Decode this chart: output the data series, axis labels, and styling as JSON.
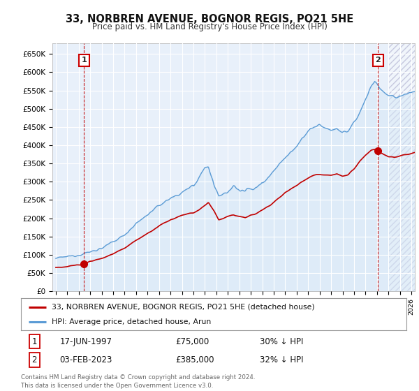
{
  "title": "33, NORBREN AVENUE, BOGNOR REGIS, PO21 5HE",
  "subtitle": "Price paid vs. HM Land Registry's House Price Index (HPI)",
  "ylim": [
    0,
    680000
  ],
  "yticks": [
    0,
    50000,
    100000,
    150000,
    200000,
    250000,
    300000,
    350000,
    400000,
    450000,
    500000,
    550000,
    600000,
    650000
  ],
  "xlim_start": 1994.7,
  "xlim_end": 2026.3,
  "hpi_color": "#5b9bd5",
  "price_color": "#c00000",
  "hpi_fill_color": "#d6e8f7",
  "background_color": "#e8f0fa",
  "sale1_x": 1997.46,
  "sale1_y": 75000,
  "sale2_x": 2023.09,
  "sale2_y": 385000,
  "legend_line1": "33, NORBREN AVENUE, BOGNOR REGIS, PO21 5HE (detached house)",
  "legend_line2": "HPI: Average price, detached house, Arun",
  "table_row1": [
    "1",
    "17-JUN-1997",
    "£75,000",
    "30% ↓ HPI"
  ],
  "table_row2": [
    "2",
    "03-FEB-2023",
    "£385,000",
    "32% ↓ HPI"
  ],
  "footer": "Contains HM Land Registry data © Crown copyright and database right 2024.\nThis data is licensed under the Open Government Licence v3.0.",
  "hatched_region_start": 2024.0,
  "grid_color": "#ffffff"
}
